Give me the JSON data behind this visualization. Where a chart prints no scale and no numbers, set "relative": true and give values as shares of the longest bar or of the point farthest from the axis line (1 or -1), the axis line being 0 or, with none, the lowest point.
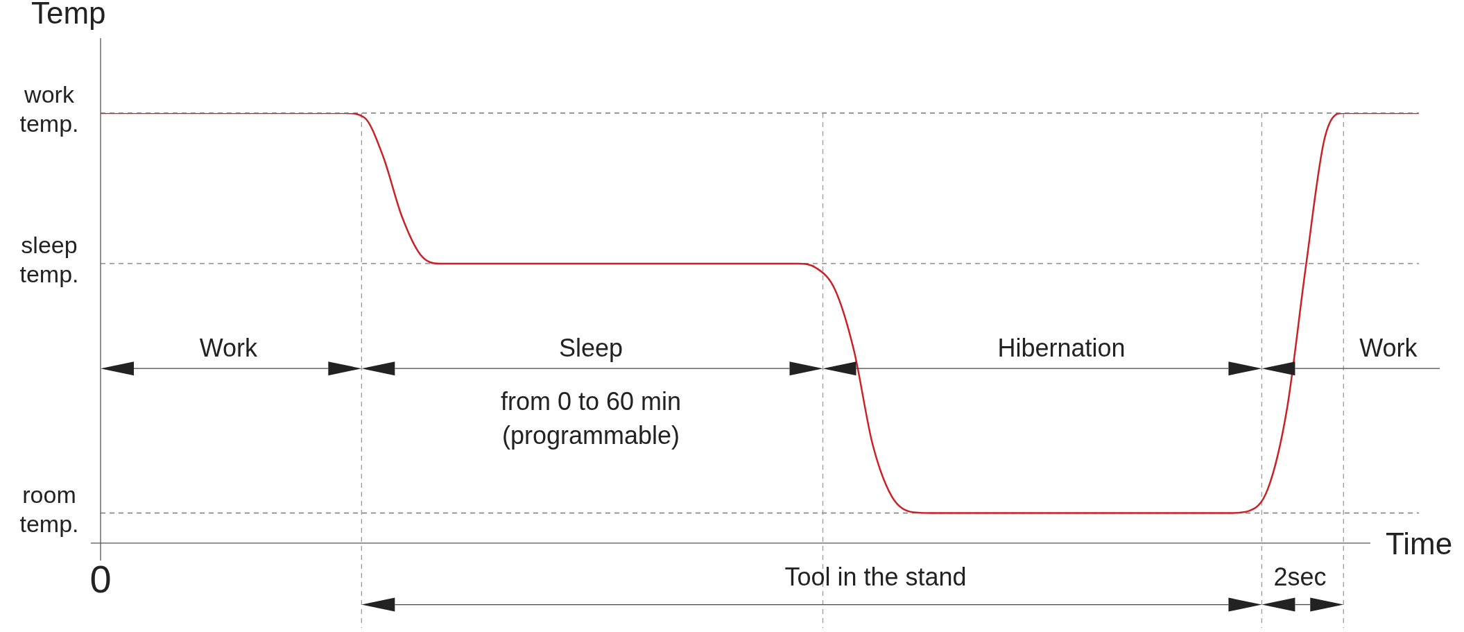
{
  "chart_data": {
    "type": "line",
    "relative": true,
    "xlabel": "Time",
    "ylabel": "Temp",
    "marker": "none",
    "line_style": "solid",
    "legend": false,
    "categories": [
      null,
      null,
      null,
      null,
      null,
      null,
      null,
      null,
      null,
      null,
      null,
      null,
      null,
      null,
      null,
      null,
      null,
      null,
      null,
      null,
      null,
      null,
      null,
      null,
      null,
      null,
      null,
      null,
      null,
      null,
      null,
      null,
      null,
      null,
      null,
      null,
      null,
      null,
      null,
      null,
      null,
      null,
      null,
      null,
      null,
      null,
      null,
      null,
      null,
      null,
      null,
      null,
      null,
      null,
      null,
      null,
      null,
      null,
      null,
      null,
      null,
      null,
      null,
      null,
      null,
      null,
      null,
      null,
      null,
      null,
      null
    ],
    "series": [
      {
        "color": "#cc2027",
        "values": [
          1,
          1,
          1,
          1,
          1,
          1,
          1,
          1,
          1,
          1,
          1,
          1,
          1,
          1,
          0.99,
          0.9,
          0.76,
          0.67,
          0.65,
          0.65,
          0.65,
          0.65,
          0.65,
          0.65,
          0.65,
          0.65,
          0.65,
          0.65,
          0.65,
          0.65,
          0.65,
          0.65,
          0.65,
          0.65,
          0.65,
          0.65,
          0.65,
          0.65,
          0.64,
          0.59,
          0.45,
          0.23,
          0.11,
          0.073,
          0.07,
          0.07,
          0.07,
          0.07,
          0.07,
          0.07,
          0.07,
          0.07,
          0.07,
          0.07,
          0.07,
          0.07,
          0.07,
          0.07,
          0.07,
          0.07,
          0.07,
          0.075,
          0.127,
          0.31,
          0.64,
          0.94,
          1,
          1,
          1,
          1,
          1
        ]
      }
    ],
    "ref_lines": [
      {
        "axis": "y",
        "value": 1,
        "label": "work temp.",
        "color": "#777777",
        "line_style": "dashed"
      },
      {
        "axis": "y",
        "value": 0.65,
        "label": "sleep temp.",
        "color": "#777777",
        "line_style": "dashed"
      },
      {
        "axis": "y",
        "value": 0.07,
        "label": "room temp.",
        "color": "#777777",
        "line_style": "dashed"
      }
    ],
    "annotations": [
      "Work",
      "Sleep",
      "from 0 to 60 min",
      "(programmable)",
      "Hibernation",
      "Work",
      "Tool in the stand",
      "2sec",
      "0"
    ]
  }
}
